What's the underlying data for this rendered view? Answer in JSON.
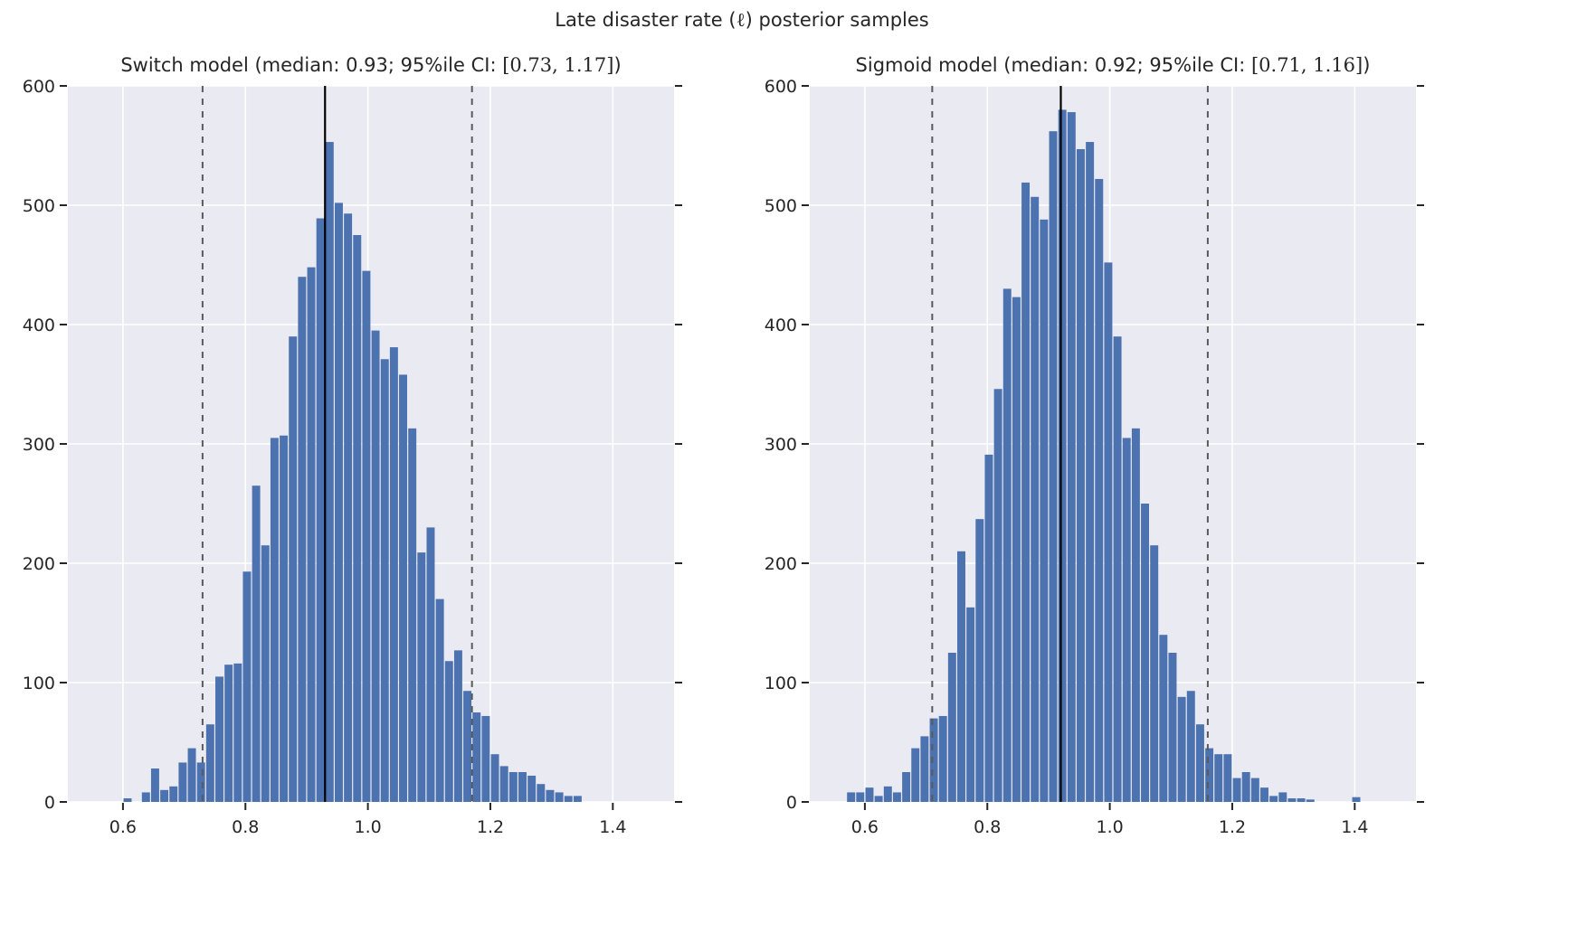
{
  "figure_title": {
    "pre": "Late disaster rate (",
    "math": "ℓ",
    "post": ") posterior samples"
  },
  "style": {
    "figure_background": "#ffffff",
    "axes_background": "#eaeaf2",
    "grid_color": "#ffffff",
    "bar_color": "#4c72b0",
    "median_line_color": "#000000",
    "ci_line_color": "#5a5a5a",
    "tick_color": "#262626",
    "label_color": "#262626"
  },
  "chart_data": [
    {
      "type": "bar",
      "name": "switch-model-histogram",
      "title": {
        "pre": "Switch model (median: 0.93; 95%ile CI: ",
        "math": "[0.73, 1.17]",
        "post": ")"
      },
      "median": 0.93,
      "ci95": [
        0.73,
        1.17
      ],
      "bin_start": 0.6,
      "bin_width": 0.015,
      "counts": [
        3,
        0,
        8,
        28,
        10,
        13,
        33,
        45,
        33,
        65,
        105,
        115,
        116,
        193,
        265,
        215,
        305,
        307,
        390,
        440,
        448,
        489,
        553,
        502,
        493,
        475,
        445,
        395,
        371,
        381,
        358,
        313,
        209,
        230,
        170,
        118,
        127,
        93,
        75,
        72,
        40,
        30,
        25,
        25,
        22,
        15,
        10,
        8,
        5,
        5
      ],
      "xlim": [
        0.51,
        1.5
      ],
      "ylim": [
        0,
        600
      ],
      "xticks": [
        0.6,
        0.8,
        1.0,
        1.2,
        1.4
      ],
      "xtick_labels": [
        "0.6",
        "0.8",
        "1.0",
        "1.2",
        "1.4"
      ],
      "yticks": [
        0,
        100,
        200,
        300,
        400,
        500,
        600
      ],
      "ytick_labels": [
        "0",
        "100",
        "200",
        "300",
        "400",
        "500",
        "600"
      ],
      "grid": true,
      "legend": "none"
    },
    {
      "type": "bar",
      "name": "sigmoid-model-histogram",
      "title": {
        "pre": "Sigmoid model (median: 0.92; 95%ile CI: ",
        "math": "[0.71, 1.16]",
        "post": ")"
      },
      "median": 0.92,
      "ci95": [
        0.71,
        1.16
      ],
      "bin_start": 0.57,
      "bin_width": 0.015,
      "counts": [
        8,
        8,
        12,
        5,
        13,
        8,
        25,
        45,
        55,
        70,
        72,
        125,
        210,
        163,
        237,
        291,
        346,
        430,
        423,
        519,
        507,
        488,
        562,
        580,
        578,
        547,
        553,
        522,
        452,
        390,
        305,
        313,
        250,
        215,
        140,
        125,
        88,
        93,
        65,
        45,
        40,
        40,
        20,
        25,
        20,
        12,
        5,
        8,
        3,
        3,
        2,
        0,
        0,
        0,
        0,
        4
      ],
      "xlim": [
        0.51,
        1.5
      ],
      "ylim": [
        0,
        600
      ],
      "xticks": [
        0.6,
        0.8,
        1.0,
        1.2,
        1.4
      ],
      "xtick_labels": [
        "0.6",
        "0.8",
        "1.0",
        "1.2",
        "1.4"
      ],
      "yticks": [
        0,
        100,
        200,
        300,
        400,
        500,
        600
      ],
      "ytick_labels": [
        "0",
        "100",
        "200",
        "300",
        "400",
        "500",
        "600"
      ],
      "grid": true,
      "legend": "none"
    }
  ]
}
